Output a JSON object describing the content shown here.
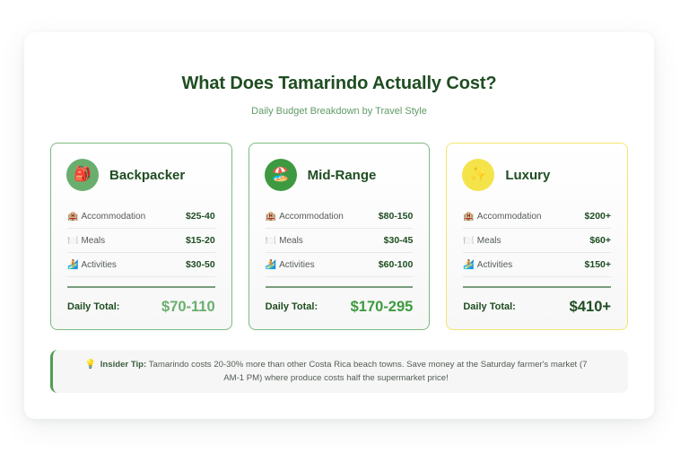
{
  "header": {
    "title": "What Does Tamarindo Actually Cost?",
    "subtitle": "Daily Budget Breakdown by Travel Style"
  },
  "cards": [
    {
      "name": "Backpacker",
      "icon": "🎒",
      "icon_name": "backpack-icon",
      "badge_color": "#6aae6e",
      "border_color": "#7dbb80",
      "rows": [
        {
          "icon": "🏨",
          "label": "Accommodation",
          "value": "$25-40"
        },
        {
          "icon": "🍽️",
          "label": "Meals",
          "value": "$15-20"
        },
        {
          "icon": "🏄",
          "label": "Activities",
          "value": "$30-50"
        }
      ],
      "total_label": "Daily Total:",
      "total_value": "$70-110",
      "total_color": "#6aae6e"
    },
    {
      "name": "Mid-Range",
      "icon": "🏖️",
      "icon_name": "beach-umbrella-icon",
      "badge_color": "#3d9a40",
      "border_color": "#7dbb80",
      "rows": [
        {
          "icon": "🏨",
          "label": "Accommodation",
          "value": "$80-150"
        },
        {
          "icon": "🍽️",
          "label": "Meals",
          "value": "$30-45"
        },
        {
          "icon": "🏄",
          "label": "Activities",
          "value": "$60-100"
        }
      ],
      "total_label": "Daily Total:",
      "total_value": "$170-295",
      "total_color": "#3d9a40"
    },
    {
      "name": "Luxury",
      "icon": "✨",
      "icon_name": "sparkles-icon",
      "badge_color": "#f5e34a",
      "border_color": "#f4e56b",
      "rows": [
        {
          "icon": "🏨",
          "label": "Accommodation",
          "value": "$200+"
        },
        {
          "icon": "🍽️",
          "label": "Meals",
          "value": "$60+"
        },
        {
          "icon": "🏄",
          "label": "Activities",
          "value": "$150+"
        }
      ],
      "total_label": "Daily Total:",
      "total_value": "$410+",
      "total_color": "#1f4d22"
    }
  ],
  "tip": {
    "icon": "💡",
    "label": "Insider Tip:",
    "text": " Tamarindo costs 20-30% more than other Costa Rica beach towns. Save money at the Saturday farmer's market (7 AM-1 PM) where produce costs half the supermarket price!"
  },
  "colors": {
    "title": "#1f4d22",
    "subtitle": "#5f9a66",
    "tip_border": "#4f9e53"
  }
}
